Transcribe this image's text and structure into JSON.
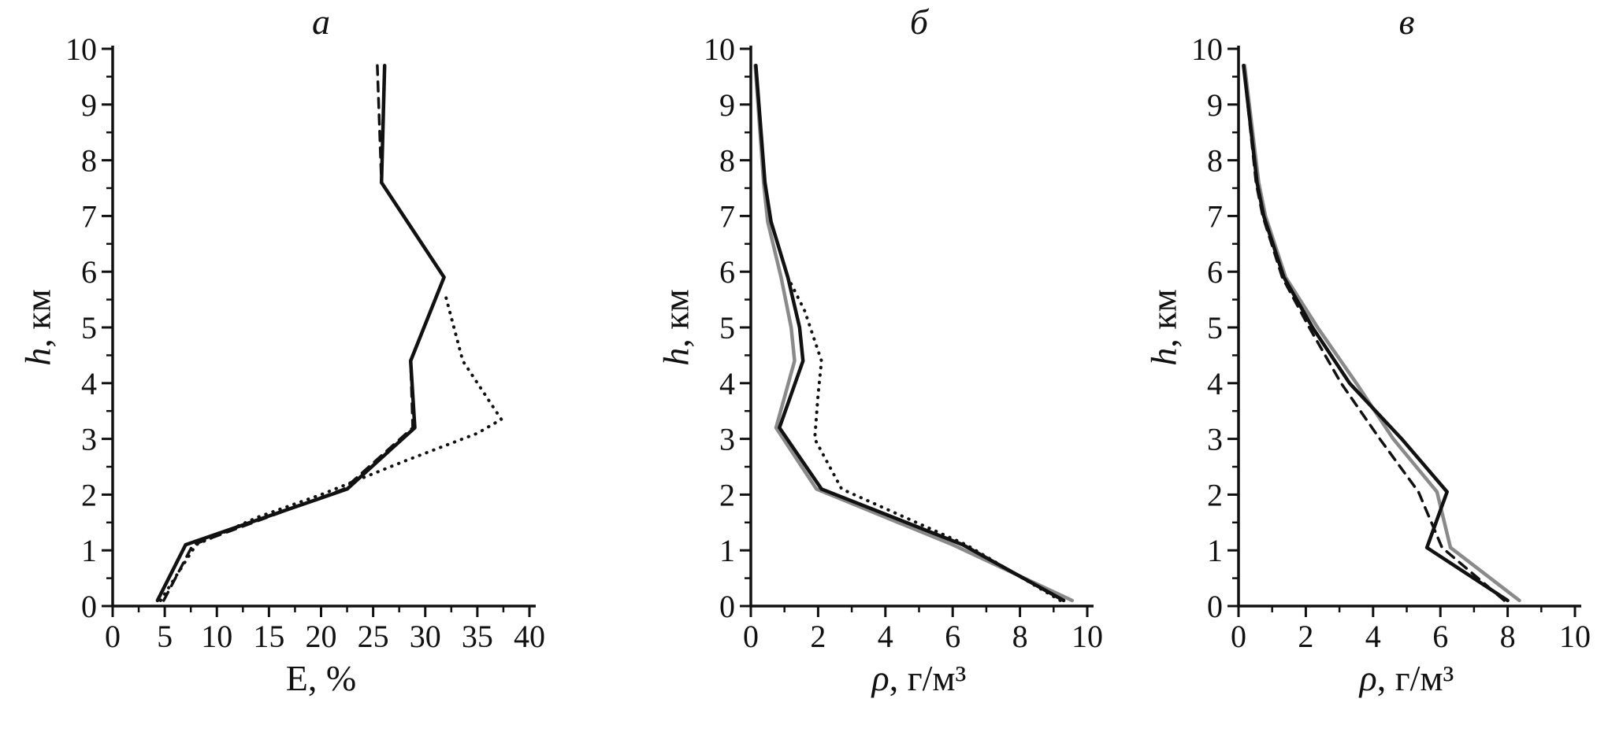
{
  "figure": {
    "background": "#ffffff",
    "ink_color": "#111111",
    "gray_color": "#8a8a8a"
  },
  "chart_data": [
    {
      "id": "a",
      "type": "line",
      "title": "а",
      "xlabel_italic": "",
      "xlabel_rest": "E, %",
      "ylabel_italic": "h",
      "ylabel_rest": ", км",
      "xlim": [
        0,
        40
      ],
      "ylim": [
        0,
        10
      ],
      "xticks": [
        0,
        5,
        10,
        15,
        20,
        25,
        30,
        35,
        40
      ],
      "yticks": [
        0,
        1,
        2,
        3,
        4,
        5,
        6,
        7,
        8,
        9,
        10
      ],
      "xminor_step": 2.5,
      "yminor_step": 0.5,
      "grid": false,
      "legend": "none",
      "series": [
        {
          "name": "dashed-black",
          "style": "dashed",
          "color": "#111111",
          "width": 3.5,
          "points": [
            [
              4.9,
              0.1
            ],
            [
              7.7,
              1.1
            ],
            [
              22.2,
              2.1
            ],
            [
              28.8,
              3.2
            ],
            [
              28.6,
              4.4
            ],
            [
              31.8,
              5.9
            ],
            [
              25.8,
              7.6
            ],
            [
              25.4,
              9.7
            ]
          ]
        },
        {
          "name": "dotted-black",
          "style": "dotted",
          "color": "#111111",
          "width": 4,
          "points": [
            [
              4.6,
              0.1
            ],
            [
              8.0,
              1.1
            ],
            [
              14.0,
              1.6
            ],
            [
              20.0,
              2.0
            ],
            [
              28.0,
              2.6
            ],
            [
              35.0,
              3.1
            ],
            [
              37.3,
              3.35
            ],
            [
              33.6,
              4.4
            ],
            [
              31.9,
              5.6
            ]
          ]
        },
        {
          "name": "solid-black",
          "style": "solid",
          "color": "#111111",
          "width": 4.5,
          "points": [
            [
              4.3,
              0.1
            ],
            [
              7.0,
              1.1
            ],
            [
              22.5,
              2.1
            ],
            [
              29.0,
              3.2
            ],
            [
              28.6,
              4.4
            ],
            [
              31.8,
              5.9
            ],
            [
              25.8,
              7.6
            ],
            [
              26.1,
              9.7
            ]
          ]
        }
      ]
    },
    {
      "id": "b",
      "type": "line",
      "title": "б",
      "xlabel_italic": "ρ",
      "xlabel_rest": ", г/м³",
      "ylabel_italic": "h",
      "ylabel_rest": ", км",
      "xlim": [
        0,
        10
      ],
      "ylim": [
        0,
        10
      ],
      "xticks": [
        0,
        2,
        4,
        6,
        8,
        10
      ],
      "yticks": [
        0,
        1,
        2,
        3,
        4,
        5,
        6,
        7,
        8,
        9,
        10
      ],
      "xminor_step": 1,
      "yminor_step": 0.5,
      "grid": false,
      "legend": "none",
      "series": [
        {
          "name": "solid-gray",
          "style": "solid",
          "color": "#8a8a8a",
          "width": 4.5,
          "points": [
            [
              9.55,
              0.1
            ],
            [
              6.0,
              1.1
            ],
            [
              1.95,
              2.1
            ],
            [
              0.75,
              3.2
            ],
            [
              1.3,
              4.4
            ],
            [
              1.2,
              5.0
            ],
            [
              0.9,
              5.9
            ],
            [
              0.5,
              6.9
            ],
            [
              0.38,
              7.6
            ],
            [
              0.13,
              9.7
            ]
          ]
        },
        {
          "name": "dotted-black",
          "style": "dotted",
          "color": "#111111",
          "width": 4,
          "points": [
            [
              9.2,
              0.1
            ],
            [
              6.4,
              1.1
            ],
            [
              2.7,
              2.1
            ],
            [
              1.9,
              3.0
            ],
            [
              2.0,
              3.8
            ],
            [
              2.1,
              4.4
            ],
            [
              1.6,
              5.3
            ],
            [
              1.1,
              5.9
            ],
            [
              0.6,
              6.9
            ],
            [
              0.42,
              7.6
            ],
            [
              0.15,
              9.7
            ]
          ]
        },
        {
          "name": "solid-black",
          "style": "solid",
          "color": "#111111",
          "width": 4.5,
          "points": [
            [
              9.3,
              0.1
            ],
            [
              6.3,
              1.1
            ],
            [
              2.1,
              2.1
            ],
            [
              0.85,
              3.2
            ],
            [
              1.55,
              4.4
            ],
            [
              1.45,
              5.0
            ],
            [
              1.1,
              5.9
            ],
            [
              0.6,
              6.9
            ],
            [
              0.42,
              7.6
            ],
            [
              0.15,
              9.7
            ]
          ]
        }
      ]
    },
    {
      "id": "v",
      "type": "line",
      "title": "в",
      "xlabel_italic": "ρ",
      "xlabel_rest": ", г/м³",
      "ylabel_italic": "h",
      "ylabel_rest": ", км",
      "xlim": [
        0,
        10
      ],
      "ylim": [
        0,
        10
      ],
      "xticks": [
        0,
        2,
        4,
        6,
        8,
        10
      ],
      "yticks": [
        0,
        1,
        2,
        3,
        4,
        5,
        6,
        7,
        8,
        9,
        10
      ],
      "xminor_step": 1,
      "yminor_step": 0.5,
      "grid": false,
      "legend": "none",
      "series": [
        {
          "name": "solid-gray",
          "style": "solid",
          "color": "#8a8a8a",
          "width": 4.5,
          "points": [
            [
              8.35,
              0.1
            ],
            [
              6.3,
              1.05
            ],
            [
              5.9,
              2.05
            ],
            [
              4.6,
              3.0
            ],
            [
              3.5,
              4.0
            ],
            [
              2.35,
              5.0
            ],
            [
              1.4,
              5.9
            ],
            [
              0.8,
              7.0
            ],
            [
              0.6,
              7.6
            ],
            [
              0.18,
              9.7
            ]
          ]
        },
        {
          "name": "dashed-black",
          "style": "dashed",
          "color": "#111111",
          "width": 3.5,
          "points": [
            [
              7.9,
              0.1
            ],
            [
              6.05,
              1.05
            ],
            [
              5.35,
              2.05
            ],
            [
              4.2,
              3.0
            ],
            [
              3.05,
              4.0
            ],
            [
              2.1,
              5.0
            ],
            [
              1.3,
              5.9
            ],
            [
              0.72,
              7.0
            ],
            [
              0.52,
              7.6
            ],
            [
              0.15,
              9.7
            ]
          ]
        },
        {
          "name": "solid-black",
          "style": "solid",
          "color": "#111111",
          "width": 4.5,
          "points": [
            [
              8.0,
              0.1
            ],
            [
              5.6,
              1.05
            ],
            [
              6.2,
              2.05
            ],
            [
              4.85,
              3.0
            ],
            [
              3.3,
              4.0
            ],
            [
              2.2,
              5.0
            ],
            [
              1.35,
              5.9
            ],
            [
              0.75,
              7.0
            ],
            [
              0.55,
              7.6
            ],
            [
              0.15,
              9.7
            ]
          ]
        }
      ]
    }
  ]
}
